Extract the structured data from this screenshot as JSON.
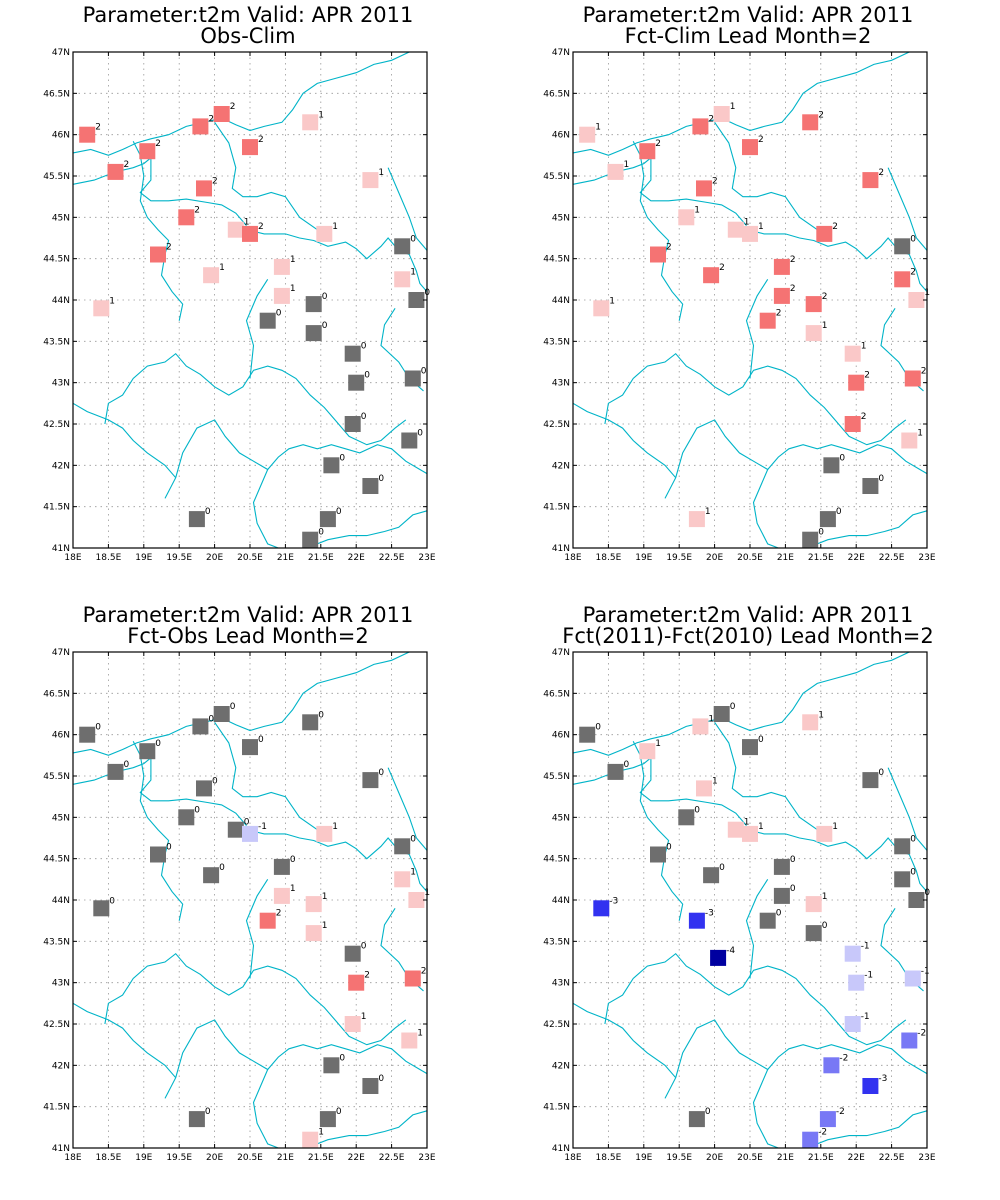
{
  "figure": {
    "panels": [
      {
        "title_line1": "Parameter:t2m Valid: APR 2011",
        "title_line2": "Obs-Clim"
      },
      {
        "title_line1": "Parameter:t2m Valid: APR 2011",
        "title_line2": "Fct-Clim Lead Month=2"
      },
      {
        "title_line1": "Parameter:t2m Valid: APR 2011",
        "title_line2": "Fct-Obs Lead Month=2"
      },
      {
        "title_line1": "Parameter:t2m Valid: APR 2011",
        "title_line2": "Fct(2011)-Fct(2010) Lead Month=2"
      }
    ],
    "lat_ticks": [
      "41N",
      "41.5N",
      "42N",
      "42.5N",
      "43N",
      "43.5N",
      "44N",
      "44.5N",
      "45N",
      "45.5N",
      "46N",
      "46.5N",
      "47N"
    ],
    "lon_ticks": [
      "18E",
      "18.5E",
      "19E",
      "19.5E",
      "20E",
      "20.5E",
      "21E",
      "21.5E",
      "22E",
      "22.5E",
      "23E"
    ]
  },
  "colors": {
    "0": "#6e6e6e",
    "1": "#fac8c8",
    "2": "#f57373",
    "-1": "#c8c8fa",
    "-2": "#7878f5",
    "-3": "#3232f0",
    "-4": "#0000a0",
    "coast": "#00b4c8",
    "grid": "#999999"
  },
  "chart_data": [
    {
      "type": "map",
      "title": "Parameter:t2m Valid: APR 2011 Obs-Clim",
      "xlim": [
        18,
        23
      ],
      "ylim": [
        41,
        47
      ],
      "points": [
        {
          "lon": 18.2,
          "lat": 46.0,
          "v": 2
        },
        {
          "lon": 19.8,
          "lat": 46.1,
          "v": 2
        },
        {
          "lon": 20.1,
          "lat": 46.25,
          "v": 2
        },
        {
          "lon": 21.35,
          "lat": 46.15,
          "v": 1
        },
        {
          "lon": 19.05,
          "lat": 45.8,
          "v": 2
        },
        {
          "lon": 20.5,
          "lat": 45.85,
          "v": 2
        },
        {
          "lon": 18.6,
          "lat": 45.55,
          "v": 2
        },
        {
          "lon": 19.85,
          "lat": 45.35,
          "v": 2
        },
        {
          "lon": 22.2,
          "lat": 45.45,
          "v": 1
        },
        {
          "lon": 19.6,
          "lat": 45.0,
          "v": 2
        },
        {
          "lon": 20.3,
          "lat": 44.85,
          "v": 1
        },
        {
          "lon": 20.5,
          "lat": 44.8,
          "v": 2
        },
        {
          "lon": 21.55,
          "lat": 44.8,
          "v": 1
        },
        {
          "lon": 22.65,
          "lat": 44.65,
          "v": 0
        },
        {
          "lon": 19.2,
          "lat": 44.55,
          "v": 2
        },
        {
          "lon": 19.95,
          "lat": 44.3,
          "v": 1
        },
        {
          "lon": 20.95,
          "lat": 44.4,
          "v": 1
        },
        {
          "lon": 22.65,
          "lat": 44.25,
          "v": 1
        },
        {
          "lon": 20.95,
          "lat": 44.05,
          "v": 1
        },
        {
          "lon": 21.4,
          "lat": 43.95,
          "v": 0
        },
        {
          "lon": 22.85,
          "lat": 44.0,
          "v": 0
        },
        {
          "lon": 18.4,
          "lat": 43.9,
          "v": 1
        },
        {
          "lon": 20.75,
          "lat": 43.75,
          "v": 0
        },
        {
          "lon": 21.4,
          "lat": 43.6,
          "v": 0
        },
        {
          "lon": 21.95,
          "lat": 43.35,
          "v": 0
        },
        {
          "lon": 22.0,
          "lat": 43.0,
          "v": 0
        },
        {
          "lon": 22.8,
          "lat": 43.05,
          "v": 0
        },
        {
          "lon": 21.95,
          "lat": 42.5,
          "v": 0
        },
        {
          "lon": 22.75,
          "lat": 42.3,
          "v": 0
        },
        {
          "lon": 21.65,
          "lat": 42.0,
          "v": 0
        },
        {
          "lon": 22.2,
          "lat": 41.75,
          "v": 0
        },
        {
          "lon": 19.75,
          "lat": 41.35,
          "v": 0
        },
        {
          "lon": 21.6,
          "lat": 41.35,
          "v": 0
        },
        {
          "lon": 21.35,
          "lat": 41.1,
          "v": 0
        }
      ]
    },
    {
      "type": "map",
      "title": "Parameter:t2m Valid: APR 2011 Fct-Clim Lead Month=2",
      "xlim": [
        18,
        23
      ],
      "ylim": [
        41,
        47
      ],
      "points": [
        {
          "lon": 18.2,
          "lat": 46.0,
          "v": 1
        },
        {
          "lon": 19.8,
          "lat": 46.1,
          "v": 2
        },
        {
          "lon": 20.1,
          "lat": 46.25,
          "v": 1
        },
        {
          "lon": 21.35,
          "lat": 46.15,
          "v": 2
        },
        {
          "lon": 19.05,
          "lat": 45.8,
          "v": 2
        },
        {
          "lon": 20.5,
          "lat": 45.85,
          "v": 2
        },
        {
          "lon": 18.6,
          "lat": 45.55,
          "v": 1
        },
        {
          "lon": 19.85,
          "lat": 45.35,
          "v": 2
        },
        {
          "lon": 22.2,
          "lat": 45.45,
          "v": 2
        },
        {
          "lon": 19.6,
          "lat": 45.0,
          "v": 1
        },
        {
          "lon": 20.3,
          "lat": 44.85,
          "v": 1
        },
        {
          "lon": 20.5,
          "lat": 44.8,
          "v": 1
        },
        {
          "lon": 21.55,
          "lat": 44.8,
          "v": 2
        },
        {
          "lon": 22.65,
          "lat": 44.65,
          "v": 0
        },
        {
          "lon": 19.2,
          "lat": 44.55,
          "v": 2
        },
        {
          "lon": 19.95,
          "lat": 44.3,
          "v": 2
        },
        {
          "lon": 20.95,
          "lat": 44.4,
          "v": 2
        },
        {
          "lon": 22.65,
          "lat": 44.25,
          "v": 2
        },
        {
          "lon": 20.95,
          "lat": 44.05,
          "v": 2
        },
        {
          "lon": 21.4,
          "lat": 43.95,
          "v": 2
        },
        {
          "lon": 22.85,
          "lat": 44.0,
          "v": 1
        },
        {
          "lon": 18.4,
          "lat": 43.9,
          "v": 1
        },
        {
          "lon": 20.75,
          "lat": 43.75,
          "v": 2
        },
        {
          "lon": 21.4,
          "lat": 43.6,
          "v": 1
        },
        {
          "lon": 21.95,
          "lat": 43.35,
          "v": 1
        },
        {
          "lon": 22.0,
          "lat": 43.0,
          "v": 2
        },
        {
          "lon": 22.8,
          "lat": 43.05,
          "v": 2
        },
        {
          "lon": 21.95,
          "lat": 42.5,
          "v": 2
        },
        {
          "lon": 22.75,
          "lat": 42.3,
          "v": 1
        },
        {
          "lon": 21.65,
          "lat": 42.0,
          "v": 0
        },
        {
          "lon": 22.2,
          "lat": 41.75,
          "v": 0
        },
        {
          "lon": 19.75,
          "lat": 41.35,
          "v": 1
        },
        {
          "lon": 21.6,
          "lat": 41.35,
          "v": 0
        },
        {
          "lon": 21.35,
          "lat": 41.1,
          "v": 0
        }
      ]
    },
    {
      "type": "map",
      "title": "Parameter:t2m Valid: APR 2011 Fct-Obs Lead Month=2",
      "xlim": [
        18,
        23
      ],
      "ylim": [
        41,
        47
      ],
      "points": [
        {
          "lon": 18.2,
          "lat": 46.0,
          "v": 0
        },
        {
          "lon": 19.8,
          "lat": 46.1,
          "v": 0
        },
        {
          "lon": 20.1,
          "lat": 46.25,
          "v": 0
        },
        {
          "lon": 21.35,
          "lat": 46.15,
          "v": 0
        },
        {
          "lon": 19.05,
          "lat": 45.8,
          "v": 0
        },
        {
          "lon": 20.5,
          "lat": 45.85,
          "v": 0
        },
        {
          "lon": 18.6,
          "lat": 45.55,
          "v": 0
        },
        {
          "lon": 19.85,
          "lat": 45.35,
          "v": 0
        },
        {
          "lon": 22.2,
          "lat": 45.45,
          "v": 0
        },
        {
          "lon": 19.6,
          "lat": 45.0,
          "v": 0
        },
        {
          "lon": 20.3,
          "lat": 44.85,
          "v": 0
        },
        {
          "lon": 20.5,
          "lat": 44.8,
          "v": -1
        },
        {
          "lon": 21.55,
          "lat": 44.8,
          "v": 1
        },
        {
          "lon": 22.65,
          "lat": 44.65,
          "v": 0
        },
        {
          "lon": 19.2,
          "lat": 44.55,
          "v": 0
        },
        {
          "lon": 19.95,
          "lat": 44.3,
          "v": 0
        },
        {
          "lon": 20.95,
          "lat": 44.4,
          "v": 0
        },
        {
          "lon": 22.65,
          "lat": 44.25,
          "v": 1
        },
        {
          "lon": 20.95,
          "lat": 44.05,
          "v": 1
        },
        {
          "lon": 21.4,
          "lat": 43.95,
          "v": 1
        },
        {
          "lon": 22.85,
          "lat": 44.0,
          "v": 1
        },
        {
          "lon": 18.4,
          "lat": 43.9,
          "v": 0
        },
        {
          "lon": 20.75,
          "lat": 43.75,
          "v": 2
        },
        {
          "lon": 21.4,
          "lat": 43.6,
          "v": 1
        },
        {
          "lon": 21.95,
          "lat": 43.35,
          "v": 0
        },
        {
          "lon": 22.0,
          "lat": 43.0,
          "v": 2
        },
        {
          "lon": 22.8,
          "lat": 43.05,
          "v": 2
        },
        {
          "lon": 21.95,
          "lat": 42.5,
          "v": 1
        },
        {
          "lon": 22.75,
          "lat": 42.3,
          "v": 1
        },
        {
          "lon": 21.65,
          "lat": 42.0,
          "v": 0
        },
        {
          "lon": 22.2,
          "lat": 41.75,
          "v": 0
        },
        {
          "lon": 19.75,
          "lat": 41.35,
          "v": 0
        },
        {
          "lon": 21.6,
          "lat": 41.35,
          "v": 0
        },
        {
          "lon": 21.35,
          "lat": 41.1,
          "v": 1
        }
      ]
    },
    {
      "type": "map",
      "title": "Parameter:t2m Valid: APR 2011 Fct(2011)-Fct(2010) Lead Month=2",
      "xlim": [
        18,
        23
      ],
      "ylim": [
        41,
        47
      ],
      "points": [
        {
          "lon": 18.2,
          "lat": 46.0,
          "v": 0
        },
        {
          "lon": 19.8,
          "lat": 46.1,
          "v": 1
        },
        {
          "lon": 20.1,
          "lat": 46.25,
          "v": 0
        },
        {
          "lon": 21.35,
          "lat": 46.15,
          "v": 1
        },
        {
          "lon": 19.05,
          "lat": 45.8,
          "v": 1
        },
        {
          "lon": 20.5,
          "lat": 45.85,
          "v": 0
        },
        {
          "lon": 18.6,
          "lat": 45.55,
          "v": 0
        },
        {
          "lon": 19.85,
          "lat": 45.35,
          "v": 1
        },
        {
          "lon": 22.2,
          "lat": 45.45,
          "v": 0
        },
        {
          "lon": 19.6,
          "lat": 45.0,
          "v": 0
        },
        {
          "lon": 20.3,
          "lat": 44.85,
          "v": 1
        },
        {
          "lon": 20.5,
          "lat": 44.8,
          "v": 1
        },
        {
          "lon": 21.55,
          "lat": 44.8,
          "v": 1
        },
        {
          "lon": 22.65,
          "lat": 44.65,
          "v": 0
        },
        {
          "lon": 19.2,
          "lat": 44.55,
          "v": 0
        },
        {
          "lon": 19.95,
          "lat": 44.3,
          "v": 0
        },
        {
          "lon": 20.95,
          "lat": 44.4,
          "v": 0
        },
        {
          "lon": 22.65,
          "lat": 44.25,
          "v": 0
        },
        {
          "lon": 20.95,
          "lat": 44.05,
          "v": 0
        },
        {
          "lon": 21.4,
          "lat": 43.95,
          "v": 1
        },
        {
          "lon": 22.85,
          "lat": 44.0,
          "v": 0
        },
        {
          "lon": 18.4,
          "lat": 43.9,
          "v": -3
        },
        {
          "lon": 19.75,
          "lat": 43.75,
          "v": -3
        },
        {
          "lon": 20.75,
          "lat": 43.75,
          "v": 0
        },
        {
          "lon": 21.4,
          "lat": 43.6,
          "v": 0
        },
        {
          "lon": 20.05,
          "lat": 43.3,
          "v": -4
        },
        {
          "lon": 21.95,
          "lat": 43.35,
          "v": -1
        },
        {
          "lon": 22.0,
          "lat": 43.0,
          "v": -1
        },
        {
          "lon": 22.8,
          "lat": 43.05,
          "v": -1
        },
        {
          "lon": 21.95,
          "lat": 42.5,
          "v": -1
        },
        {
          "lon": 22.75,
          "lat": 42.3,
          "v": -2
        },
        {
          "lon": 21.65,
          "lat": 42.0,
          "v": -2
        },
        {
          "lon": 22.2,
          "lat": 41.75,
          "v": -3
        },
        {
          "lon": 19.75,
          "lat": 41.35,
          "v": 0
        },
        {
          "lon": 21.6,
          "lat": 41.35,
          "v": -2
        },
        {
          "lon": 21.35,
          "lat": 41.1,
          "v": -2
        }
      ]
    }
  ]
}
